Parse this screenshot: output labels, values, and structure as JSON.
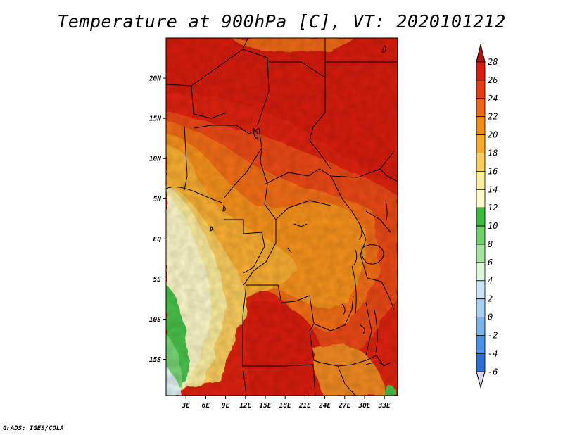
{
  "title": "Temperature at 900hPa [C], VT: 2020101212",
  "credit": "GrADS: IGES/COLA",
  "map": {
    "lon_range": [
      0,
      35
    ],
    "lat_range": [
      -19.5,
      25
    ],
    "lat_ticks": [
      {
        "value": 20,
        "label": "20N"
      },
      {
        "value": 15,
        "label": "15N"
      },
      {
        "value": 10,
        "label": "10N"
      },
      {
        "value": 5,
        "label": "5N"
      },
      {
        "value": 0,
        "label": "EQ"
      },
      {
        "value": -5,
        "label": "5S"
      },
      {
        "value": -10,
        "label": "10S"
      },
      {
        "value": -15,
        "label": "15S"
      }
    ],
    "lon_ticks": [
      {
        "value": 3,
        "label": "3E"
      },
      {
        "value": 6,
        "label": "6E"
      },
      {
        "value": 9,
        "label": "9E"
      },
      {
        "value": 12,
        "label": "12E"
      },
      {
        "value": 15,
        "label": "15E"
      },
      {
        "value": 18,
        "label": "18E"
      },
      {
        "value": 21,
        "label": "21E"
      },
      {
        "value": 24,
        "label": "24E"
      },
      {
        "value": 27,
        "label": "27E"
      },
      {
        "value": 30,
        "label": "30E"
      },
      {
        "value": 33,
        "label": "33E"
      }
    ]
  },
  "colorbar": {
    "levels": [
      "28",
      "26",
      "24",
      "22",
      "20",
      "18",
      "16",
      "14",
      "12",
      "10",
      "8",
      "6",
      "4",
      "2",
      "0",
      "-2",
      "-4",
      "-6"
    ],
    "colors_top_to_bottom": [
      "#dc1c10",
      "#e83c10",
      "#f06414",
      "#f58c18",
      "#f9aa2a",
      "#fbcd5a",
      "#fcee9a",
      "#fdfac8",
      "#3cbc3c",
      "#6ed46a",
      "#a0e69c",
      "#dcf6dc",
      "#c8e6f8",
      "#a6d0f4",
      "#78b4f0",
      "#4894e8",
      "#2a6ed8",
      "#1448c0",
      "#10249a",
      "#0a0a62"
    ],
    "top_triangle_color": "#b41010",
    "bottom_triangle_color": "#ddd6f2"
  }
}
